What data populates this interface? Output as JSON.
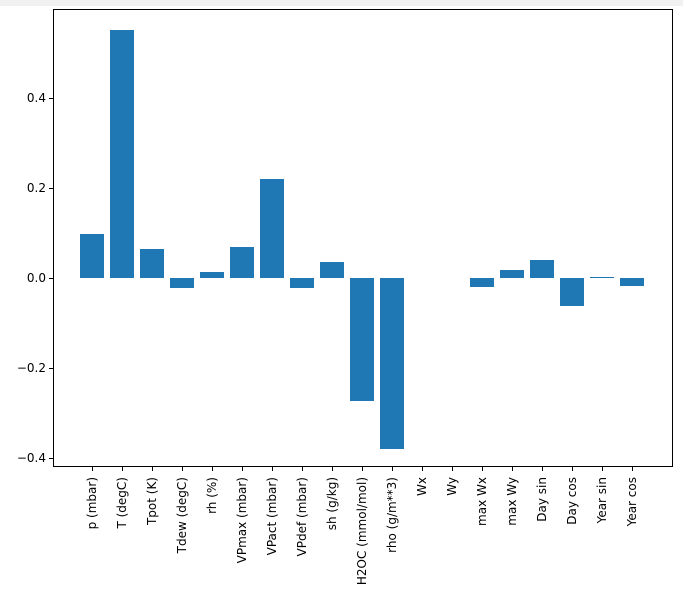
{
  "chart_data": {
    "type": "bar",
    "title": "",
    "xlabel": "",
    "ylabel": "",
    "categories": [
      "p (mbar)",
      "T (degC)",
      "Tpot (K)",
      "Tdew (degC)",
      "rh (%)",
      "VPmax (mbar)",
      "VPact (mbar)",
      "VPdef (mbar)",
      "sh (g/kg)",
      "H2OC (mmol/mol)",
      "rho (g/m**3)",
      "Wx",
      "Wy",
      "max Wx",
      "max Wy",
      "Day sin",
      "Day cos",
      "Year sin",
      "Year cos"
    ],
    "values": [
      0.098,
      0.552,
      0.065,
      -0.022,
      0.013,
      0.069,
      0.22,
      -0.023,
      0.035,
      -0.274,
      -0.38,
      0.0,
      0.0,
      -0.019,
      0.018,
      0.039,
      -0.062,
      0.003,
      -0.017
    ],
    "ylim": [
      -0.42,
      0.596
    ],
    "yticks": [
      -0.4,
      -0.2,
      0.0,
      0.2,
      0.4
    ],
    "ytick_labels": [
      "−0.4",
      "−0.2",
      "0.0",
      "0.2",
      "0.4"
    ],
    "x_tick_rotation": 90,
    "grid": false,
    "legend": null,
    "bar_color": "#1f77b4",
    "axis_color": "#000000",
    "background_color": "#ffffff",
    "top_strip_color": "#f1f1f1"
  }
}
